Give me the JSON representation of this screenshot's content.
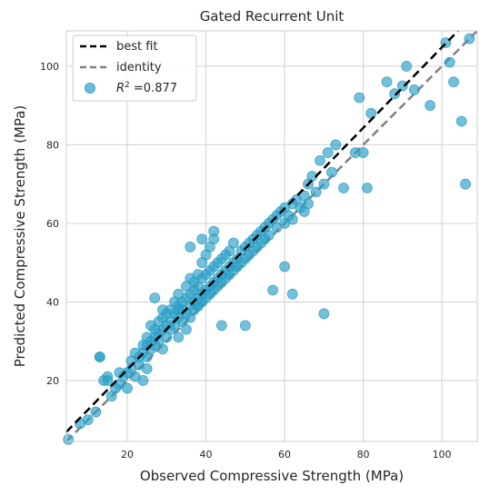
{
  "chart_data": {
    "type": "scatter",
    "title": "Gated Recurrent Unit",
    "xlabel": "Observed Compressive Strength (MPa)",
    "ylabel": "Predicted Compressive Strength (MPa)",
    "xlim": [
      4.5,
      109
    ],
    "ylim": [
      4.5,
      109
    ],
    "xticks": [
      20,
      40,
      60,
      80,
      100
    ],
    "yticks": [
      20,
      40,
      60,
      80,
      100
    ],
    "grid": true,
    "legend_position": "top-left",
    "colors": {
      "points": "#2a9ec6",
      "best_fit": "#000000",
      "identity": "#808080",
      "grid": "#d0d0d0",
      "frame": "#cccccc"
    },
    "legend": {
      "best_fit_label": "best fit",
      "identity_label": "identity",
      "r2_prefix": "R",
      "r2_sup": "2",
      "r2_value": " =0.877"
    },
    "best_fit": {
      "slope": 1.025,
      "intercept": 2.3
    },
    "identity": {
      "slope": 1,
      "intercept": 0
    },
    "series": [
      {
        "x": [
          5,
          8,
          10,
          12,
          13,
          14,
          15,
          16,
          17,
          18,
          18,
          19,
          20,
          20,
          21,
          21,
          22,
          22,
          23,
          23,
          24,
          24,
          24,
          25,
          25,
          25,
          26,
          26,
          26,
          27,
          27,
          27,
          28,
          28,
          28,
          29,
          29,
          29,
          30,
          30,
          30,
          31,
          31,
          31,
          32,
          32,
          32,
          33,
          33,
          33,
          33,
          34,
          34,
          34,
          35,
          35,
          35,
          35,
          36,
          36,
          36,
          36,
          37,
          37,
          37,
          37,
          38,
          38,
          38,
          38,
          39,
          39,
          39,
          39,
          40,
          40,
          40,
          40,
          41,
          41,
          41,
          41,
          42,
          42,
          42,
          42,
          43,
          43,
          43,
          44,
          44,
          44,
          45,
          45,
          45,
          46,
          46,
          46,
          47,
          47,
          47,
          48,
          48,
          49,
          49,
          50,
          50,
          51,
          51,
          52,
          52,
          53,
          53,
          54,
          54,
          55,
          55,
          56,
          56,
          57,
          58,
          58,
          59,
          60,
          60,
          61,
          62,
          62,
          63,
          64,
          65,
          65,
          66,
          66,
          67,
          68,
          69,
          70,
          71,
          72,
          73,
          75,
          78,
          79,
          80,
          81,
          82,
          86,
          88,
          90,
          91,
          93,
          97,
          101,
          102,
          103,
          105,
          106,
          107,
          62,
          70,
          38,
          36,
          27,
          29,
          25,
          15,
          13,
          44,
          50,
          57,
          60,
          33,
          42,
          39
        ],
        "y": [
          5,
          9,
          10,
          12,
          26,
          20,
          21,
          16,
          18,
          19,
          22,
          21,
          22,
          18,
          23,
          25,
          21,
          27,
          24,
          26,
          20,
          27,
          29,
          26,
          29,
          31,
          28,
          30,
          34,
          31,
          33,
          29,
          32,
          35,
          30,
          33,
          36,
          28,
          34,
          37,
          31,
          35,
          38,
          33,
          37,
          40,
          34,
          36,
          39,
          42,
          31,
          38,
          40,
          35,
          37,
          41,
          44,
          33,
          39,
          42,
          36,
          46,
          40,
          43,
          38,
          45,
          41,
          44,
          39,
          47,
          42,
          46,
          40,
          50,
          43,
          47,
          41,
          52,
          44,
          48,
          42,
          54,
          45,
          49,
          43,
          56,
          46,
          50,
          44,
          47,
          51,
          45,
          48,
          52,
          46,
          49,
          53,
          47,
          50,
          55,
          48,
          51,
          49,
          53,
          50,
          54,
          51,
          55,
          52,
          56,
          53,
          57,
          54,
          58,
          55,
          59,
          56,
          60,
          57,
          61,
          62,
          59,
          63,
          60,
          64,
          62,
          65,
          61,
          66,
          64,
          67,
          63,
          70,
          65,
          72,
          68,
          76,
          70,
          78,
          73,
          80,
          69,
          78,
          92,
          78,
          69,
          88,
          96,
          93,
          95,
          100,
          94,
          90,
          106,
          101,
          96,
          86,
          70,
          107,
          42,
          37,
          39,
          54,
          41,
          38,
          23,
          20,
          26,
          34,
          34,
          43,
          49,
          38,
          58,
          56
        ]
      }
    ]
  }
}
